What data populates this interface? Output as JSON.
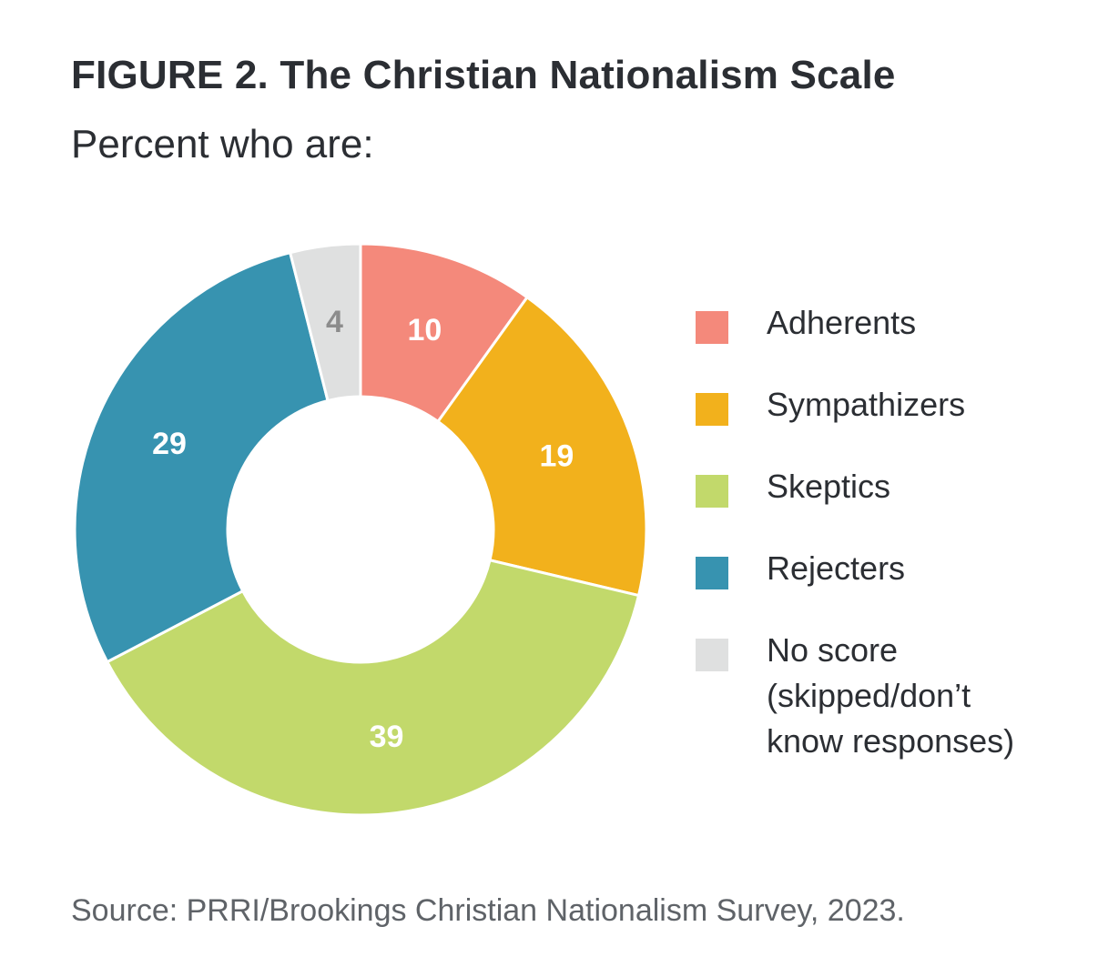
{
  "figure": {
    "title": "FIGURE 2.  The Christian Nationalism Scale",
    "subtitle": "Percent who are:",
    "source": "Source: PRRI/Brookings Christian Nationalism Survey, 2023."
  },
  "chart_data": {
    "type": "pie",
    "variant": "donut",
    "title": "FIGURE 2.  The Christian Nationalism Scale",
    "subtitle": "Percent who are:",
    "categories": [
      "Adherents",
      "Sympathizers",
      "Skeptics",
      "Rejecters",
      "No score (skipped/don’t know responses)"
    ],
    "values": [
      10,
      19,
      39,
      29,
      4
    ],
    "labels": [
      "10",
      "19",
      "39",
      "29",
      "4"
    ],
    "colors": [
      "#f4897b",
      "#f2b11c",
      "#c2d96b",
      "#3793b0",
      "#dfe0e0"
    ],
    "label_colors": [
      "#ffffff",
      "#ffffff",
      "#ffffff",
      "#ffffff",
      "#8c8c8c"
    ],
    "legend_position": "right",
    "start": "12 o'clock, clockwise"
  },
  "legend": [
    {
      "label": "Adherents",
      "color": "#f4897b"
    },
    {
      "label": "Sympathizers",
      "color": "#f2b11c"
    },
    {
      "label": "Skeptics",
      "color": "#c2d96b"
    },
    {
      "label": "Rejecters",
      "color": "#3793b0"
    },
    {
      "label": "No score\n(skipped/don’t\nknow responses)",
      "color": "#dfe0e0"
    }
  ]
}
